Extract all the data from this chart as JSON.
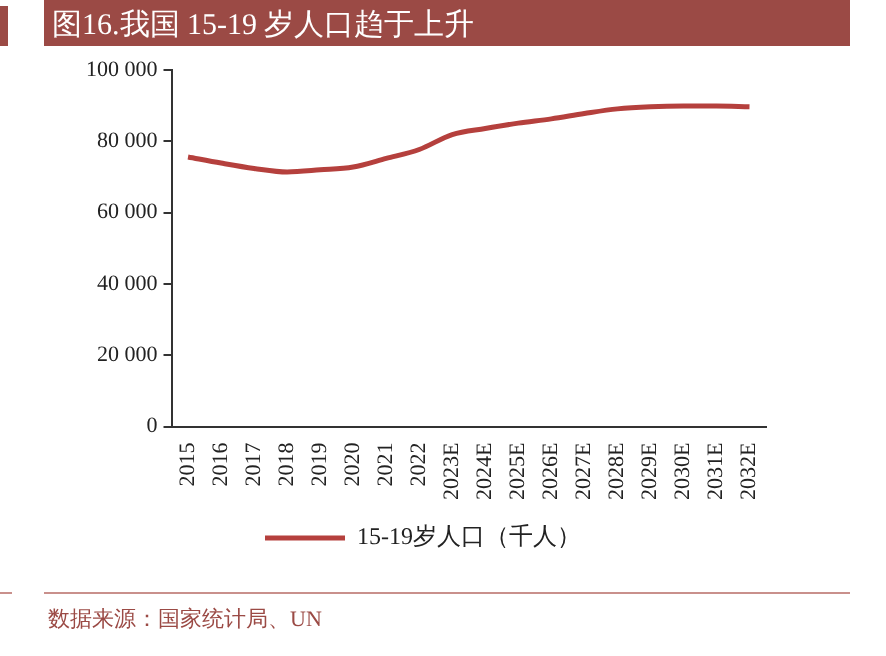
{
  "chart_data": {
    "type": "line",
    "title": "图16.我国 15-19 岁人口趋于上升",
    "categories": [
      "2015",
      "2016",
      "2017",
      "2018",
      "2019",
      "2020",
      "2021",
      "2022",
      "2023E",
      "2024E",
      "2025E",
      "2026E",
      "2027E",
      "2028E",
      "2029E",
      "2030E",
      "2031E",
      "2032E"
    ],
    "series": [
      {
        "name": "15-19岁人口（千人）",
        "color": "#b5403d",
        "values": [
          75600,
          73900,
          72400,
          71400,
          72000,
          72800,
          75200,
          77700,
          81900,
          83600,
          85100,
          86300,
          87800,
          89100,
          89700,
          89900,
          89900,
          89700
        ]
      }
    ],
    "ylim": [
      0,
      100000
    ],
    "yticks": [
      0,
      {
        "value": 20000,
        "label": "20 000"
      },
      {
        "value": 40000,
        "label": "40 000"
      },
      {
        "value": 60000,
        "label": "60 000"
      },
      {
        "value": 80000,
        "label": "80 000"
      },
      {
        "value": 100000,
        "label": "100 000"
      }
    ],
    "grid": false,
    "legend": "bottom",
    "marker": "none",
    "line_style": "solid",
    "annotations": [
      "数据来源：国家统计局、UN"
    ]
  }
}
